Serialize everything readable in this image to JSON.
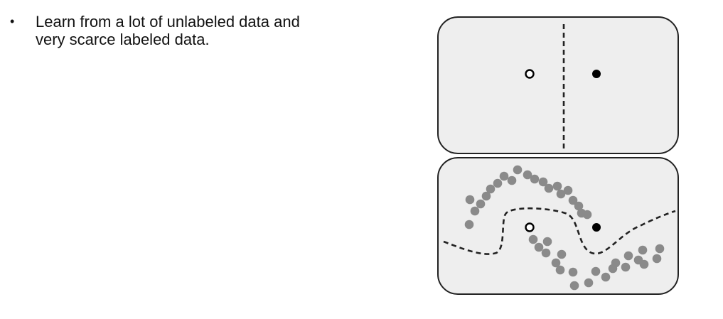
{
  "bullet": {
    "symbol": "•",
    "text": "Learn from a lot of unlabeled data and\nvery scarce labeled data."
  },
  "diagram": {
    "panel_fill": "#eeeeee",
    "panel_stroke": "#222222",
    "boundary_color": "#222222",
    "labeled_class_a_fill": "#ffffff",
    "labeled_class_b_fill": "#000000",
    "unlabeled_fill": "#8a8a8a"
  }
}
